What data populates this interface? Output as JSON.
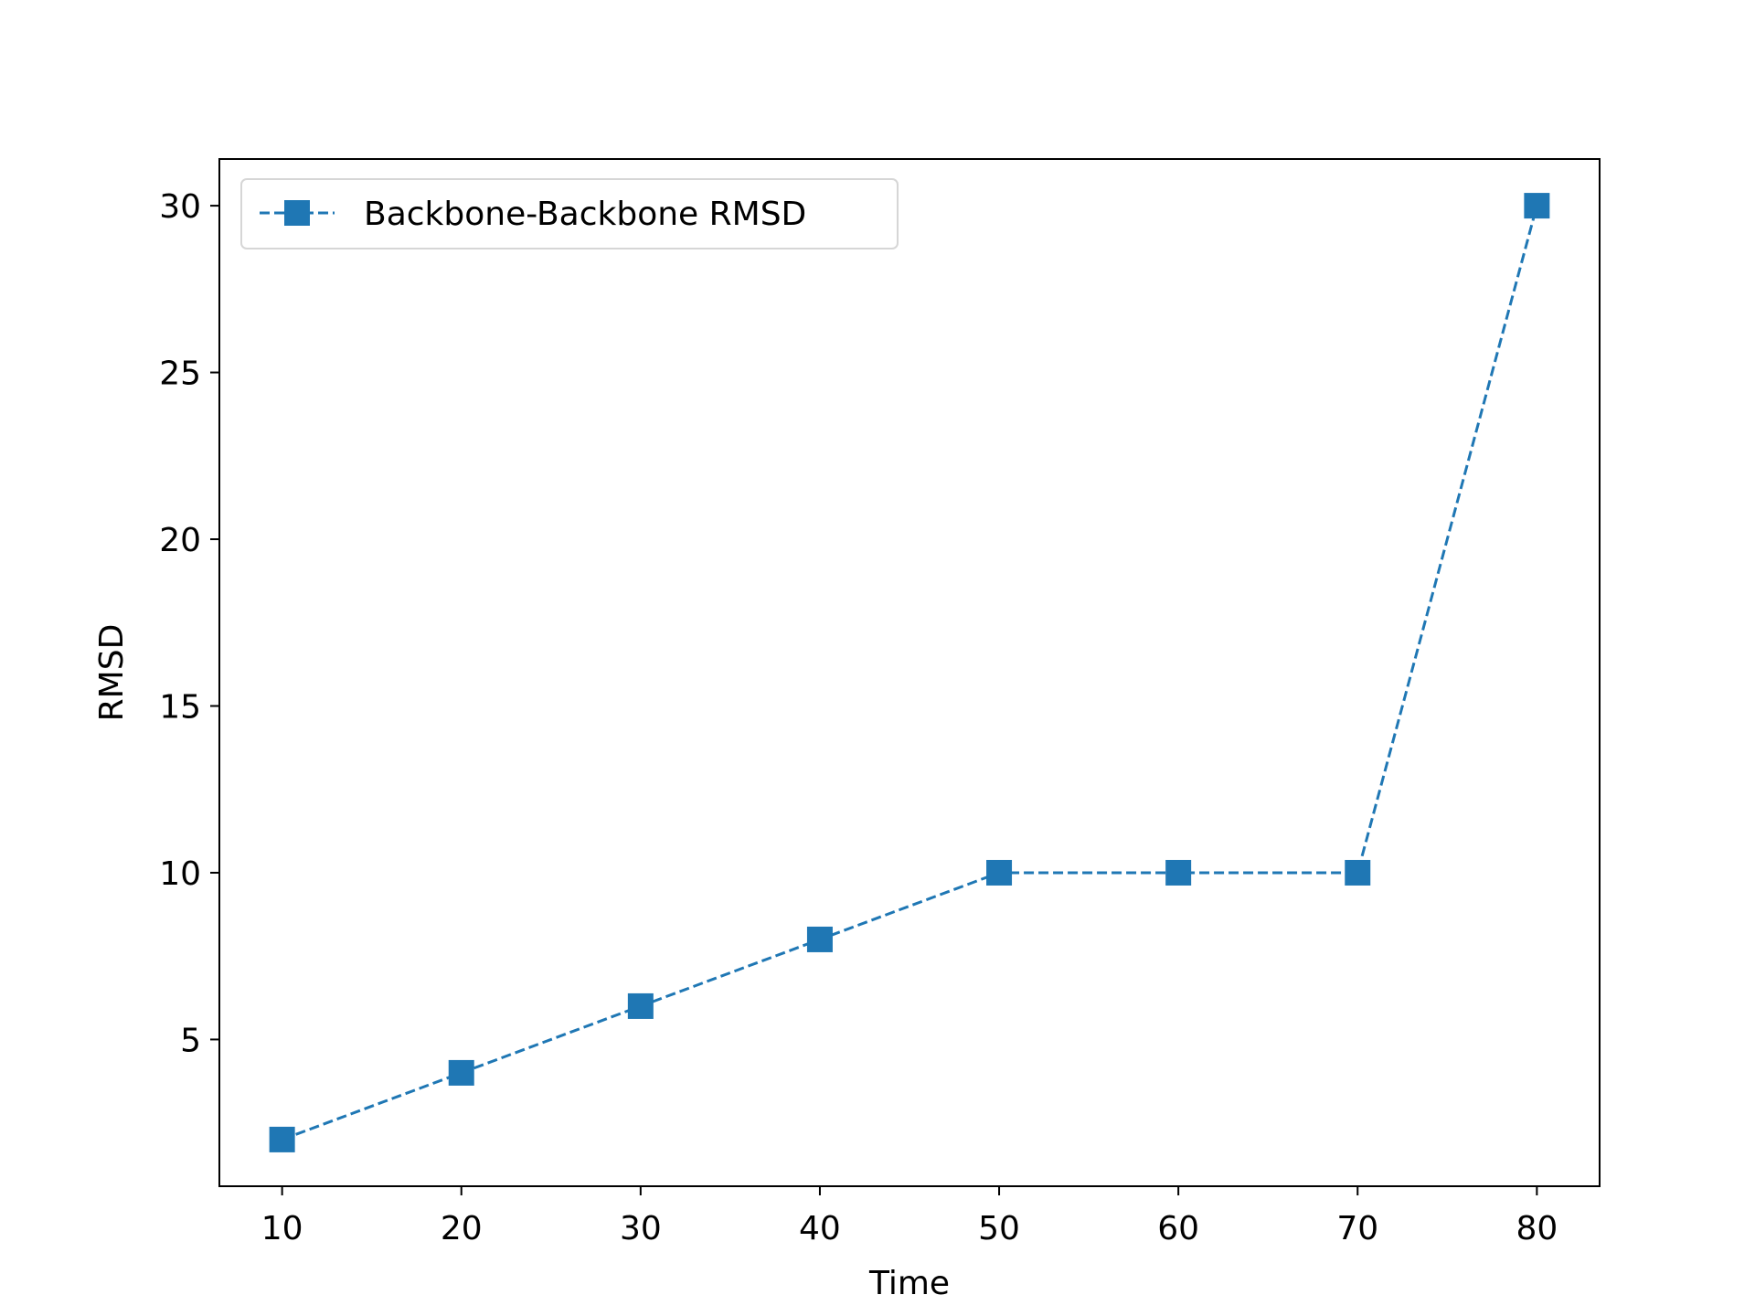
{
  "chart_data": {
    "type": "line",
    "title": "",
    "xlabel": "Time",
    "ylabel": "RMSD",
    "x": [
      10,
      20,
      30,
      40,
      50,
      60,
      70,
      80
    ],
    "series": [
      {
        "name": "Backbone-Backbone RMSD",
        "values": [
          2,
          4,
          6,
          8,
          10,
          10,
          10,
          30
        ],
        "color": "#1f77b4",
        "line_style": "dashed",
        "marker": "square"
      }
    ],
    "xlim": [
      6.5,
      83.5
    ],
    "ylim": [
      0.6,
      31.4
    ],
    "x_ticks": [
      10,
      20,
      30,
      40,
      50,
      60,
      70,
      80
    ],
    "y_ticks": [
      5,
      10,
      15,
      20,
      25,
      30
    ],
    "grid": false,
    "legend_position": "upper left"
  }
}
